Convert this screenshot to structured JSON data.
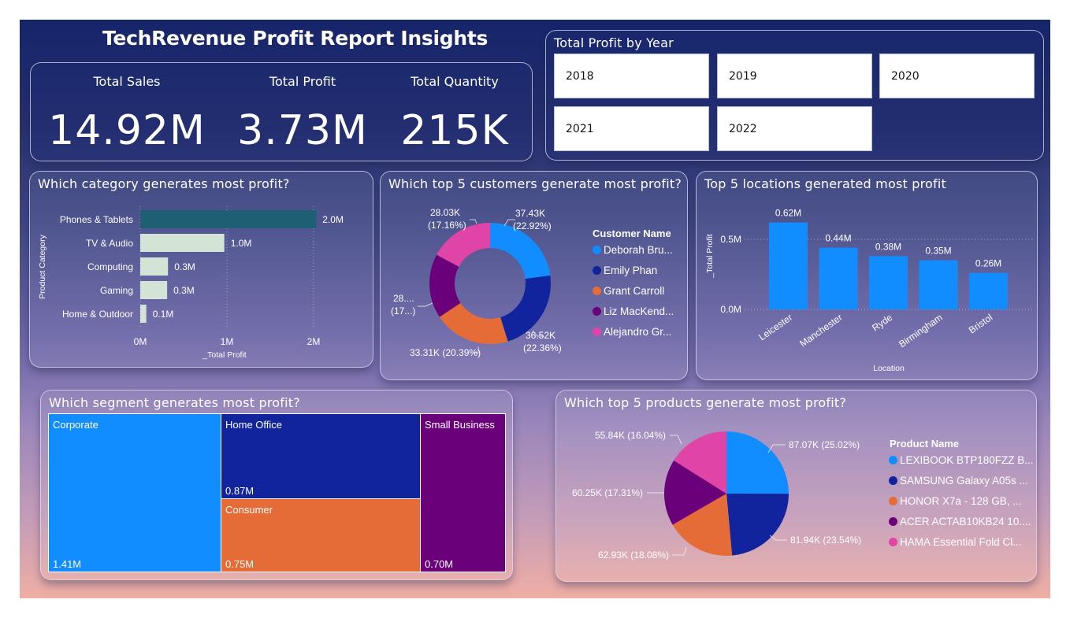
{
  "page": {
    "title": "TechRevenue Profit Report Insights"
  },
  "kpis": [
    {
      "label": "Total Sales",
      "value": "14.92M"
    },
    {
      "label": "Total Profit",
      "value": "3.73M"
    },
    {
      "label": "Total Quantity",
      "value": "215K"
    }
  ],
  "year_slicer": {
    "title": "Total Profit by Year",
    "years": [
      "2018",
      "2019",
      "2020",
      "2021",
      "2022"
    ]
  },
  "colors": {
    "series": [
      "#118dff",
      "#12239e",
      "#e66c37",
      "#6b007b",
      "#e044a7"
    ],
    "category_highlight": "#1f5f73",
    "category_bar": "#d3e3d6"
  },
  "chart_data": [
    {
      "id": "category",
      "type": "bar",
      "orientation": "horizontal",
      "title": "Which category generates most profit?",
      "categories": [
        "Phones & Tablets",
        "TV & Audio",
        "Computing",
        "Gaming",
        "Home & Outdoor"
      ],
      "values": [
        2.03,
        0.97,
        0.32,
        0.31,
        0.07
      ],
      "data_labels": [
        "2.0M",
        "1.0M",
        "0.3M",
        "0.3M",
        "0.1M"
      ],
      "xlabel": "_Total Profit",
      "ylabel": "Product Category",
      "xticks": [
        "0M",
        "1M",
        "2M"
      ],
      "xlim": [
        0,
        2
      ],
      "unit": "M",
      "grid": true
    },
    {
      "id": "customers",
      "type": "pie",
      "variant": "donut",
      "title": "Which top 5 customers generate most profit?",
      "legend_title": "Customer Name",
      "legend_position": "right",
      "labels": [
        "Deborah Bru...",
        "Emily Phan",
        "Grant Carroll",
        "Liz MacKend...",
        "Alejandro Gr..."
      ],
      "values": [
        37.43,
        36.52,
        33.31,
        28.03,
        28.03
      ],
      "percents": [
        22.92,
        22.36,
        20.39,
        17.16,
        17.16
      ],
      "data_labels": [
        [
          "37.43K",
          "(22.92%)"
        ],
        [
          "36.52K",
          "(22.36%)"
        ],
        [
          "33.31K (20.39%)"
        ],
        [
          "28....",
          "(17...)"
        ],
        [
          "28.03K",
          "(17.16%)"
        ]
      ]
    },
    {
      "id": "locations",
      "type": "bar",
      "orientation": "vertical",
      "title": "Top 5 locations generated most profit",
      "categories": [
        "Leicester",
        "Manchester",
        "Ryde",
        "Birmingham",
        "Bristol"
      ],
      "values": [
        0.62,
        0.44,
        0.38,
        0.35,
        0.26
      ],
      "data_labels": [
        "0.62M",
        "0.44M",
        "0.38M",
        "0.35M",
        "0.26M"
      ],
      "xlabel": "Location",
      "ylabel": "_Total Profit",
      "yticks": [
        "0.0M",
        "0.5M"
      ],
      "ylim": [
        0,
        0.62
      ],
      "grid": true
    },
    {
      "id": "segments",
      "type": "treemap",
      "title": "Which segment generates most profit?",
      "labels": [
        "Corporate",
        "Home Office",
        "Consumer",
        "Small Business"
      ],
      "values": [
        1.41,
        0.87,
        0.75,
        0.7
      ],
      "data_labels": [
        "1.41M",
        "0.87M",
        "0.75M",
        "0.70M"
      ]
    },
    {
      "id": "products",
      "type": "pie",
      "title": "Which top 5 products generate most profit?",
      "legend_title": "Product Name",
      "legend_position": "right",
      "labels": [
        "LEXIBOOK BTP180FZZ B...",
        "SAMSUNG Galaxy A05s ...",
        "HONOR X7a - 128 GB, ...",
        "ACER ACTAB10KB24 10....",
        "HAMA Essential Fold Cl..."
      ],
      "values": [
        87.07,
        81.94,
        62.93,
        60.25,
        55.84
      ],
      "percents": [
        25.02,
        23.54,
        18.08,
        17.31,
        16.04
      ],
      "data_labels": [
        "87.07K (25.02%)",
        "81.94K (23.54%)",
        "62.93K (18.08%)",
        "60.25K (17.31%)",
        "55.84K (16.04%)"
      ]
    }
  ]
}
